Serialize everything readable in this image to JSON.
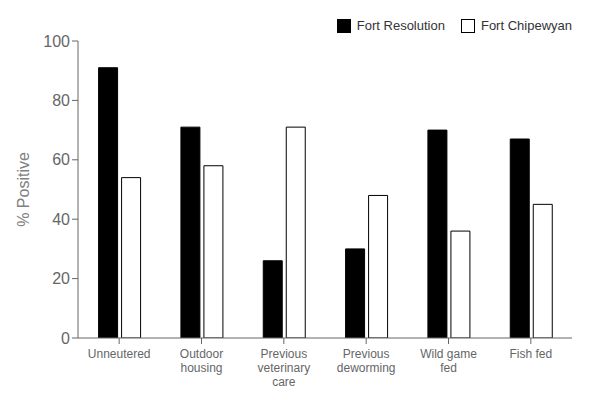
{
  "chart_data": {
    "type": "bar",
    "categories": [
      "Unneutered",
      "Outdoor\nhousing",
      "Previous\nveterinary\ncare",
      "Previous\ndeworming",
      "Wild game\nfed",
      "Fish fed"
    ],
    "series": [
      {
        "name": "Fort Resolution",
        "color": "#000000",
        "values": [
          91,
          71,
          26,
          30,
          70,
          67
        ]
      },
      {
        "name": "Fort Chipewyan",
        "color": "#ffffff",
        "values": [
          54,
          58,
          71,
          48,
          36,
          45
        ]
      }
    ],
    "ylabel": "% Positive",
    "ylim": [
      0,
      100
    ],
    "yticks": [
      0,
      20,
      40,
      60,
      80,
      100
    ],
    "grid": false,
    "legend": "upper right"
  }
}
